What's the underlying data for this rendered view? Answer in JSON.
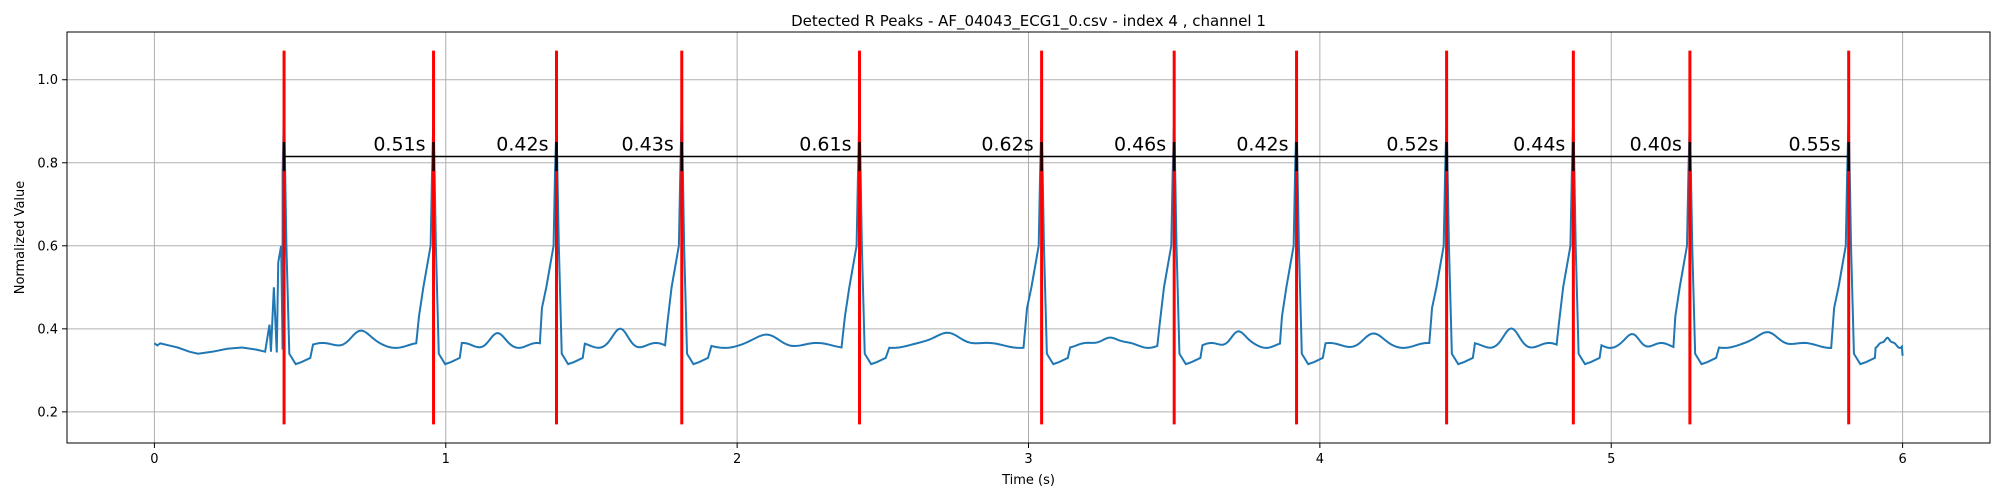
{
  "chart_data": {
    "type": "line",
    "title": "Detected R Peaks - AF_04043_ECG1_0.csv - index 4 , channel 1",
    "xlabel": "Time (s)",
    "ylabel": "Normalized Value",
    "xlim": [
      -0.3,
      6.3
    ],
    "ylim": [
      0.125,
      1.115
    ],
    "xticks": [
      0,
      1,
      2,
      3,
      4,
      5,
      6
    ],
    "yticks": [
      0.2,
      0.4,
      0.6,
      0.8,
      1.0
    ],
    "xtick_labels": [
      "0",
      "1",
      "2",
      "3",
      "4",
      "5",
      "6"
    ],
    "ytick_labels": [
      "0.2",
      "0.4",
      "0.6",
      "0.8",
      "1.0"
    ],
    "grid": true,
    "colors": {
      "signal": "#1f77b4",
      "peak_marker": "#ff0000",
      "interval_line": "#000000"
    },
    "r_peaks": [
      0.445,
      0.958,
      1.38,
      1.81,
      2.42,
      3.045,
      3.5,
      3.92,
      4.435,
      4.87,
      5.27,
      5.815
    ],
    "peak_marker_range": [
      0.17,
      1.07
    ],
    "peak_heights": [
      0.93,
      0.92,
      0.89,
      0.94,
      0.94,
      0.92,
      0.91,
      0.91,
      0.91,
      0.92,
      0.91,
      0.92
    ],
    "interval_line_y": 0.815,
    "interval_tick_range": [
      0.78,
      0.85
    ],
    "intervals": [
      "0.51s",
      "0.42s",
      "0.43s",
      "0.61s",
      "0.62s",
      "0.46s",
      "0.42s",
      "0.52s",
      "0.44s",
      "0.40s",
      "0.55s"
    ],
    "signal_series": {
      "name": "",
      "points": [
        [
          0.0,
          0.365
        ],
        [
          0.01,
          0.36
        ],
        [
          0.02,
          0.365
        ],
        [
          0.05,
          0.36
        ],
        [
          0.08,
          0.355
        ],
        [
          0.12,
          0.345
        ],
        [
          0.15,
          0.34
        ],
        [
          0.2,
          0.345
        ],
        [
          0.25,
          0.352
        ],
        [
          0.3,
          0.355
        ],
        [
          0.35,
          0.35
        ],
        [
          0.38,
          0.345
        ],
        [
          0.4,
          0.345
        ],
        [
          0.42,
          0.343
        ],
        [
          0.44,
          0.35
        ]
      ]
    }
  }
}
